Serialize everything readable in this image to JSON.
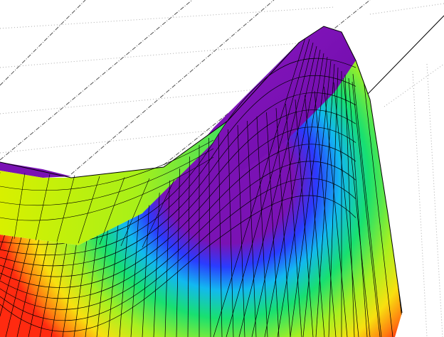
{
  "chart_data": {
    "type": "surface"
  }
}
